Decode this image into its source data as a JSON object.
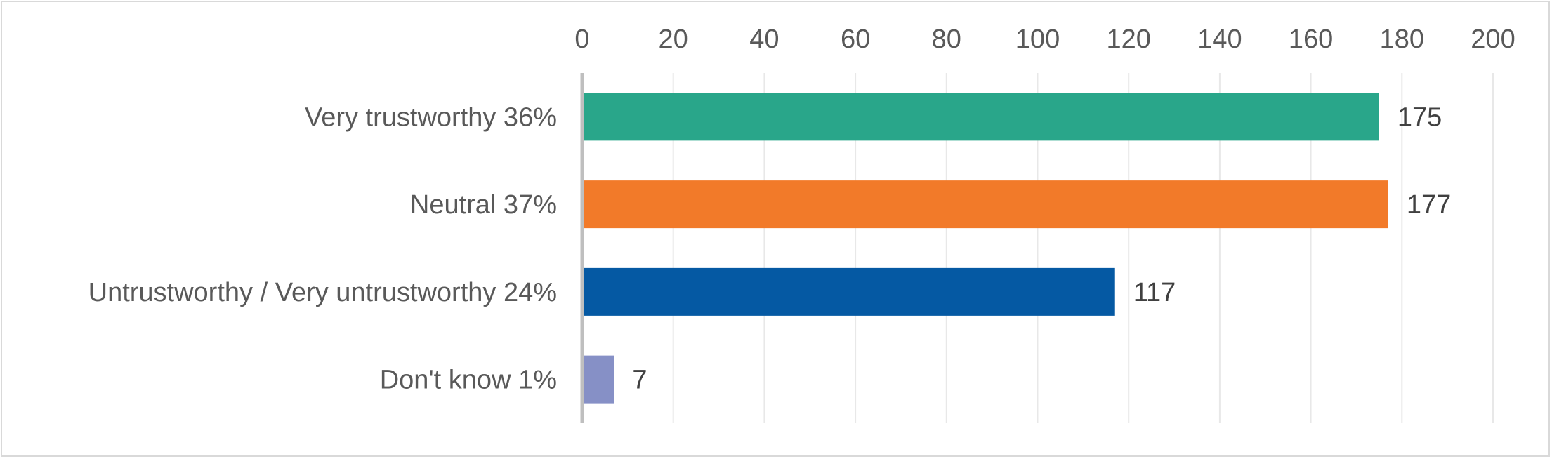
{
  "chart_data": {
    "type": "bar",
    "orientation": "horizontal",
    "title": "",
    "xlabel": "",
    "ylabel": "",
    "categories": [
      "Very trustworthy 36%",
      "Neutral 37%",
      "Untrustworthy / Very untrustworthy 24%",
      "Don't know 1%"
    ],
    "values": [
      175,
      177,
      117,
      7
    ],
    "bar_colors": [
      "#29a68a",
      "#f27a29",
      "#0559a3",
      "#8690c6"
    ],
    "xlim": [
      0,
      200
    ],
    "x_ticks": [
      0,
      20,
      40,
      60,
      80,
      100,
      120,
      140,
      160,
      180,
      200
    ],
    "x_axis_position": "top",
    "grid": true,
    "legend": "none",
    "data_labels": true
  }
}
